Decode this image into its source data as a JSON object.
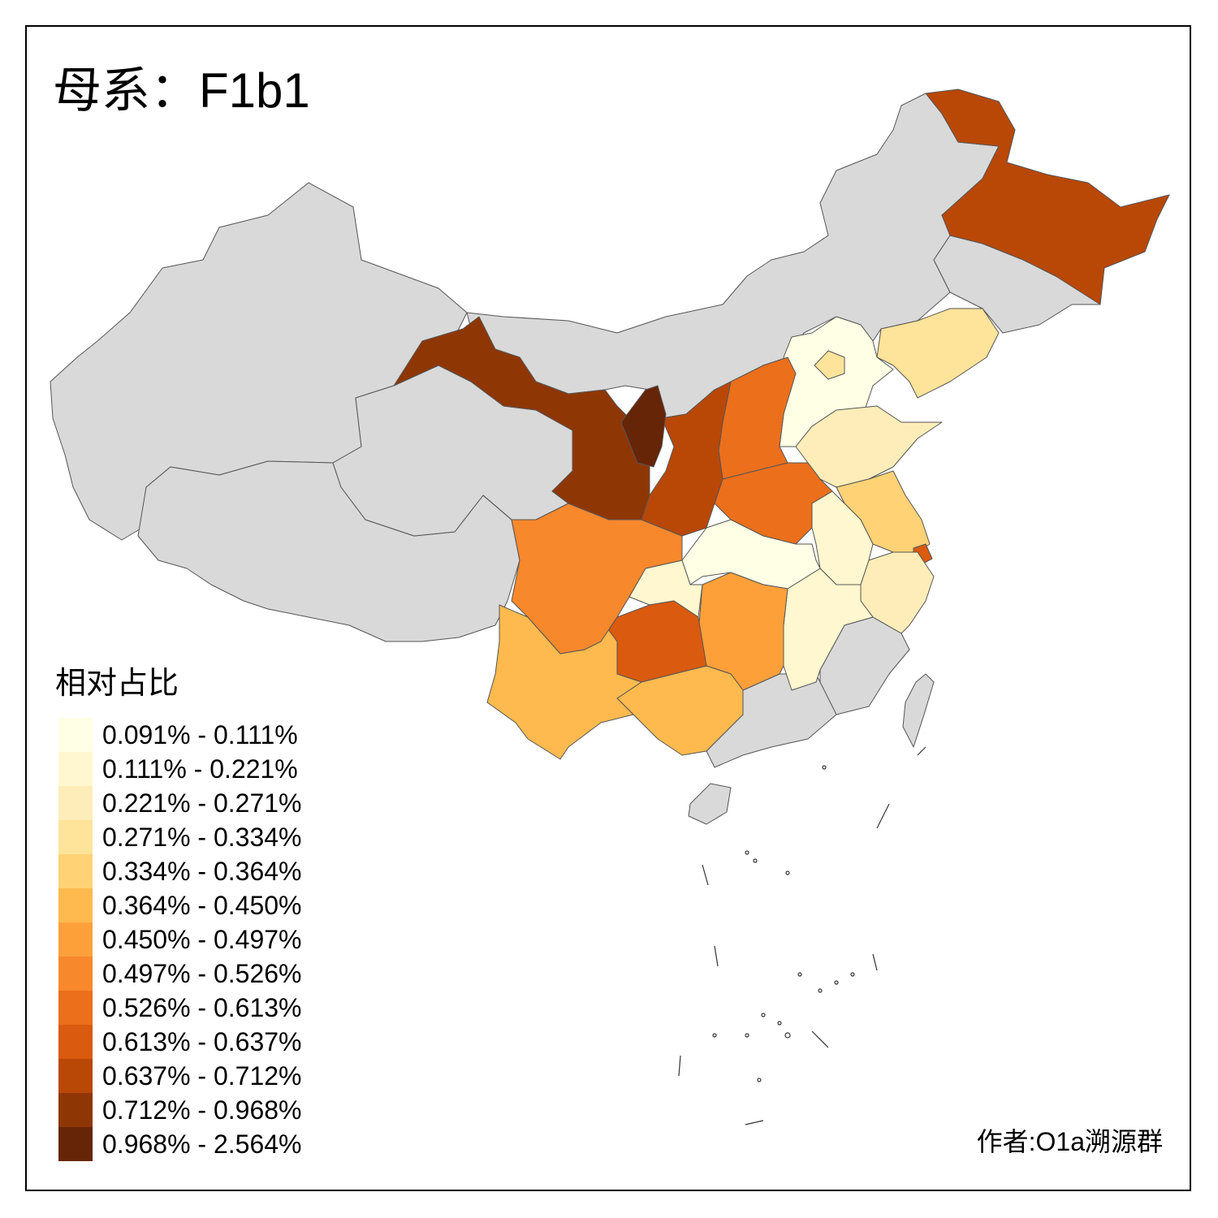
{
  "title": {
    "prefix": "母系：",
    "haplogroup": "F1b1"
  },
  "legend": {
    "title": "相对占比",
    "bins": [
      {
        "label": "0.091% - 0.111%",
        "color": "#FFFFE5"
      },
      {
        "label": "0.111% - 0.221%",
        "color": "#FFF7CF"
      },
      {
        "label": "0.221% - 0.271%",
        "color": "#FEEDB8"
      },
      {
        "label": "0.271% - 0.334%",
        "color": "#FEE39A"
      },
      {
        "label": "0.334% - 0.364%",
        "color": "#FED275"
      },
      {
        "label": "0.364% - 0.450%",
        "color": "#FEBA4F"
      },
      {
        "label": "0.450% - 0.497%",
        "color": "#FDA03A"
      },
      {
        "label": "0.497% - 0.526%",
        "color": "#F7882C"
      },
      {
        "label": "0.526% - 0.613%",
        "color": "#EC6F1C"
      },
      {
        "label": "0.613% - 0.637%",
        "color": "#DA5A0F"
      },
      {
        "label": "0.637% - 0.712%",
        "color": "#B94806"
      },
      {
        "label": "0.712% - 0.968%",
        "color": "#8F3605"
      },
      {
        "label": "0.968% - 2.564%",
        "color": "#662506"
      }
    ]
  },
  "no_data_color": "#D9D9D9",
  "author": "作者:O1a溯源群"
}
